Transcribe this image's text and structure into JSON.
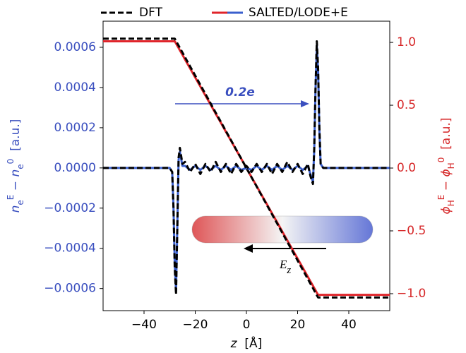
{
  "chart_data": {
    "type": "line",
    "xlabel": [
      {
        "text": "z",
        "style": "italic"
      },
      {
        "text": "  [Å]"
      }
    ],
    "ylabel": [
      {
        "text": "n",
        "style": "italic"
      },
      {
        "text": "e",
        "style": "sub"
      },
      {
        "text": "E",
        "style": "sup"
      },
      {
        "text": " − "
      },
      {
        "text": "n",
        "style": "italic"
      },
      {
        "text": "e",
        "style": "sub"
      },
      {
        "text": "0",
        "style": "sup"
      },
      {
        "text": "  [a.u.]"
      }
    ],
    "y2label": [
      {
        "text": "ϕ",
        "style": "italic"
      },
      {
        "text": "H",
        "style": "sub"
      },
      {
        "text": "E",
        "style": "sup"
      },
      {
        "text": " − "
      },
      {
        "text": "ϕ",
        "style": "italic"
      },
      {
        "text": "H",
        "style": "sub"
      },
      {
        "text": "0",
        "style": "sup"
      },
      {
        "text": "  [a.u.]"
      }
    ],
    "ylabel_color": "#3a4fbf",
    "y2label_color": "#d62728",
    "x": [
      -56,
      -30,
      -29,
      -28.5,
      -28,
      -27.5,
      -27,
      -26.5,
      -26,
      -25,
      -24,
      -22,
      -20,
      -18,
      -16,
      -14,
      -12,
      -10,
      -8,
      -6,
      -4,
      -2,
      0,
      2,
      4,
      6,
      8,
      10,
      12,
      14,
      16,
      18,
      20,
      22,
      24,
      25,
      26,
      26.5,
      27,
      27.5,
      28,
      28.5,
      29,
      30,
      56
    ],
    "series": [
      {
        "name": "DFT",
        "color": "#000000",
        "dash": true,
        "axis": "y",
        "values": [
          0,
          0,
          -2e-05,
          -0.0002,
          -0.0005,
          -0.00063,
          -0.0003,
          5e-05,
          0.0001,
          2e-05,
          3e-05,
          -2e-05,
          2e-05,
          -3e-05,
          2e-05,
          -2e-05,
          3e-05,
          -2e-05,
          2e-05,
          -3e-05,
          2e-05,
          -2e-05,
          1e-05,
          -2e-05,
          2e-05,
          -2e-05,
          2e-05,
          -3e-05,
          2e-05,
          -2e-05,
          3e-05,
          -2e-05,
          2e-05,
          -3e-05,
          2e-05,
          -4e-05,
          -8e-05,
          0.0001,
          0.0004,
          0.00063,
          0.0005,
          0.0002,
          2e-05,
          0,
          0
        ]
      },
      {
        "name": "SALTED/LODE+E",
        "color": "#3a5fcd",
        "dash": false,
        "axis": "y",
        "values": [
          0,
          0,
          -2e-05,
          -0.00019,
          -0.00048,
          -0.00061,
          -0.00029,
          4e-05,
          8e-05,
          1e-05,
          1e-05,
          -1e-05,
          1e-05,
          -1e-05,
          1e-05,
          -1e-05,
          1e-05,
          -1e-05,
          1e-05,
          -1e-05,
          1e-05,
          -1e-05,
          0,
          -1e-05,
          1e-05,
          -1e-05,
          1e-05,
          -1e-05,
          1e-05,
          -1e-05,
          1e-05,
          -1e-05,
          1e-05,
          -1e-05,
          1e-05,
          -3e-05,
          -7e-05,
          9e-05,
          0.00039,
          0.00061,
          0.00049,
          0.00019,
          2e-05,
          0,
          0
        ]
      },
      {
        "color": "#e0242a",
        "dash": false,
        "axis": "y2",
        "values": [
          1.009,
          1.009,
          1.009,
          1.009,
          1.009,
          0.992,
          0.973,
          0.956,
          0.937,
          0.902,
          0.865,
          0.793,
          0.721,
          0.649,
          0.577,
          0.505,
          0.432,
          0.361,
          0.288,
          0.217,
          0.144,
          0.073,
          0,
          -0.073,
          -0.144,
          -0.217,
          -0.288,
          -0.361,
          -0.432,
          -0.505,
          -0.577,
          -0.649,
          -0.721,
          -0.793,
          -0.865,
          -0.902,
          -0.937,
          -0.956,
          -0.973,
          -0.992,
          -1.009,
          -1.009,
          -1.009,
          -1.009,
          -1.009
        ]
      },
      {
        "color": "#000000",
        "dash": true,
        "axis": "y2",
        "values": [
          1.03,
          1.03,
          1.03,
          1.03,
          1.03,
          1.012,
          0.993,
          0.975,
          0.956,
          0.92,
          0.883,
          0.809,
          0.736,
          0.662,
          0.589,
          0.515,
          0.441,
          0.368,
          0.294,
          0.221,
          0.147,
          0.074,
          0,
          -0.074,
          -0.147,
          -0.221,
          -0.294,
          -0.368,
          -0.441,
          -0.515,
          -0.589,
          -0.662,
          -0.736,
          -0.809,
          -0.883,
          -0.92,
          -0.956,
          -0.975,
          -0.993,
          -1.012,
          -1.03,
          -1.03,
          -1.03,
          -1.03,
          -1.03
        ]
      }
    ],
    "xlim": [
      -56,
      56
    ],
    "xticks": [
      {
        "value": -40,
        "label": "−40"
      },
      {
        "value": -20,
        "label": "−20"
      },
      0,
      20,
      40
    ],
    "ylim": [
      -0.00071,
      0.00073
    ],
    "yticks": [
      {
        "value": -0.0006,
        "label": "−0.0006"
      },
      {
        "value": -0.0004,
        "label": "−0.0004"
      },
      {
        "value": -0.0002,
        "label": "−0.0002"
      },
      {
        "value": 0,
        "label": "0.0000"
      },
      {
        "value": 0.0002,
        "label": "0.0002"
      },
      {
        "value": 0.0004,
        "label": "0.0004"
      },
      {
        "value": 0.0006,
        "label": "0.0006"
      }
    ],
    "y2lim": [
      -1.135,
      1.169
    ],
    "y2ticks": [
      {
        "value": -1,
        "label": "−1.0"
      },
      {
        "value": -0.5,
        "label": "−0.5"
      },
      {
        "value": 0,
        "label": "0.0"
      },
      {
        "value": 0.5,
        "label": "0.5"
      },
      {
        "value": 1,
        "label": "1.0"
      }
    ],
    "annotations": [
      {
        "text": "0.2e"
      },
      {
        "text": "E",
        "sub": "z"
      }
    ]
  }
}
